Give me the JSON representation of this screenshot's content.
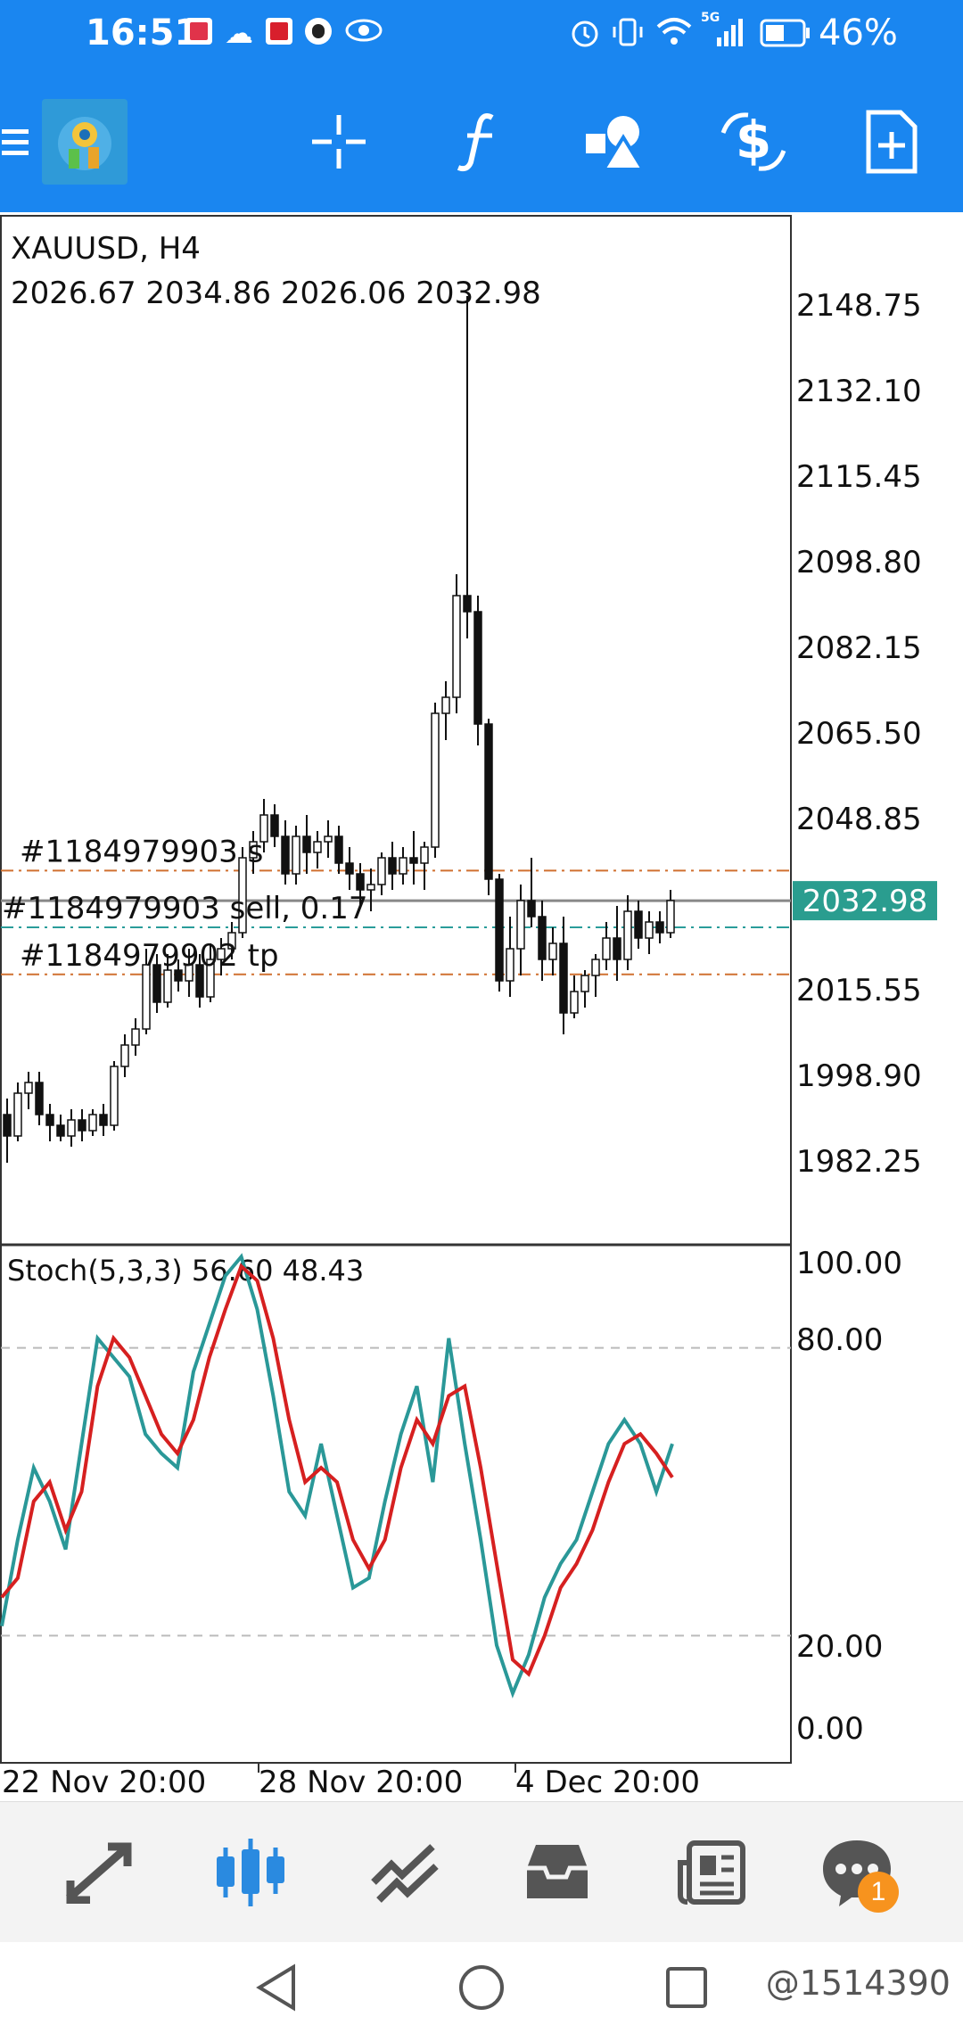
{
  "status_bar": {
    "time": "16:51",
    "battery_percent": "46%",
    "network_label": "5G"
  },
  "toolbar": {
    "icons": [
      "menu-icon",
      "app-logo",
      "crosshair-icon",
      "function-icon",
      "objects-icon",
      "trade-dollar-icon",
      "new-order-icon"
    ]
  },
  "chart": {
    "symbol_label": "XAUUSD, H4",
    "ohlc_label": "2026.67 2034.86 2026.06 2032.98",
    "current_price_label": "2032.98",
    "price_scale": [
      "2148.75",
      "2132.10",
      "2115.45",
      "2098.80",
      "2082.15",
      "2065.50",
      "2048.85",
      "2015.55",
      "1998.90",
      "1982.25"
    ],
    "order_lines": [
      {
        "label": "#1184979903 s",
        "color": "#d07030"
      },
      {
        "label": "#1184979903 sell, 0.17",
        "color": "#2a9d9a"
      },
      {
        "label": "#1184979902 tp",
        "color": "#d07030"
      }
    ],
    "indicator_label": "Stoch(5,3,3) 56.60 48.43",
    "indicator_scale": [
      "100.00",
      "80.00",
      "20.00",
      "0.00"
    ],
    "time_labels": [
      "22 Nov 20:00",
      "28 Nov 20:00",
      "4 Dec 20:00"
    ],
    "colors": {
      "price_badge_bg": "#2a9d8f",
      "stoch_main": "#2a9898",
      "stoch_signal": "#d62020",
      "bull_fill": "#ffffff",
      "bear_fill": "#111111"
    }
  },
  "chart_data": {
    "type": "candlestick",
    "symbol": "XAUUSD",
    "timeframe": "H4",
    "ylim": [
      1970,
      2160
    ],
    "order_levels": [
      2038.6,
      2028.0,
      2019.2
    ],
    "current_price": 2032.98,
    "candles": [
      [
        1993,
        1996,
        1984,
        1989
      ],
      [
        1989,
        1999,
        1988,
        1997
      ],
      [
        1997,
        2001,
        1994,
        1999
      ],
      [
        1999,
        2001,
        1991,
        1993
      ],
      [
        1993,
        1995,
        1988,
        1991
      ],
      [
        1991,
        1993,
        1988,
        1989
      ],
      [
        1989,
        1994,
        1987,
        1992
      ],
      [
        1992,
        1994,
        1988,
        1990
      ],
      [
        1990,
        1994,
        1989,
        1993
      ],
      [
        1993,
        1995,
        1989,
        1991
      ],
      [
        1991,
        2003,
        1990,
        2002
      ],
      [
        2002,
        2008,
        2000,
        2006
      ],
      [
        2006,
        2011,
        2004,
        2009
      ],
      [
        2009,
        2024,
        2008,
        2021
      ],
      [
        2021,
        2023,
        2012,
        2014
      ],
      [
        2014,
        2023,
        2013,
        2020
      ],
      [
        2020,
        2022,
        2016,
        2018
      ],
      [
        2018,
        2024,
        2015,
        2021
      ],
      [
        2021,
        2023,
        2013,
        2015
      ],
      [
        2015,
        2025,
        2014,
        2022
      ],
      [
        2022,
        2026,
        2019,
        2024
      ],
      [
        2024,
        2029,
        2022,
        2027
      ],
      [
        2027,
        2043,
        2026,
        2041
      ],
      [
        2041,
        2046,
        2038,
        2044
      ],
      [
        2044,
        2052,
        2042,
        2049
      ],
      [
        2049,
        2051,
        2043,
        2045
      ],
      [
        2045,
        2048,
        2036,
        2038
      ],
      [
        2038,
        2047,
        2036,
        2045
      ],
      [
        2045,
        2049,
        2038,
        2042
      ],
      [
        2042,
        2046,
        2039,
        2044
      ],
      [
        2044,
        2048,
        2041,
        2045
      ],
      [
        2045,
        2047,
        2038,
        2040
      ],
      [
        2040,
        2043,
        2035,
        2038
      ],
      [
        2038,
        2040,
        2032,
        2035
      ],
      [
        2035,
        2039,
        2031,
        2036
      ],
      [
        2036,
        2042,
        2034,
        2041
      ],
      [
        2041,
        2044,
        2035,
        2038
      ],
      [
        2038,
        2043,
        2036,
        2041
      ],
      [
        2041,
        2046,
        2036,
        2040
      ],
      [
        2040,
        2044,
        2035,
        2043
      ],
      [
        2043,
        2070,
        2041,
        2068
      ],
      [
        2068,
        2074,
        2063,
        2071
      ],
      [
        2071,
        2094,
        2068,
        2090
      ],
      [
        2090,
        2146,
        2082,
        2087
      ],
      [
        2087,
        2090,
        2062,
        2066
      ],
      [
        2066,
        2067,
        2034,
        2037
      ],
      [
        2037,
        2038,
        2016,
        2018
      ],
      [
        2018,
        2030,
        2015,
        2024
      ],
      [
        2024,
        2036,
        2019,
        2033
      ],
      [
        2033,
        2041,
        2028,
        2030
      ],
      [
        2030,
        2033,
        2018,
        2022
      ],
      [
        2022,
        2028,
        2019,
        2025
      ],
      [
        2025,
        2030,
        2008,
        2012
      ],
      [
        2012,
        2019,
        2011,
        2016
      ],
      [
        2016,
        2020,
        2013,
        2019
      ],
      [
        2019,
        2023,
        2015,
        2022
      ],
      [
        2022,
        2029,
        2020,
        2026
      ],
      [
        2026,
        2032,
        2018,
        2022
      ],
      [
        2022,
        2034,
        2020,
        2031
      ],
      [
        2031,
        2033,
        2024,
        2026
      ],
      [
        2026,
        2031,
        2023,
        2029
      ],
      [
        2029,
        2031,
        2025,
        2027
      ],
      [
        2027,
        2035,
        2026,
        2033
      ]
    ],
    "stoch": {
      "ylim": [
        0,
        100
      ],
      "levels": [
        20,
        80
      ],
      "main": [
        22,
        40,
        55,
        48,
        38,
        60,
        82,
        78,
        74,
        62,
        58,
        55,
        75,
        85,
        95,
        99,
        88,
        70,
        50,
        45,
        60,
        45,
        30,
        32,
        48,
        62,
        72,
        52,
        82,
        60,
        40,
        18,
        8,
        16,
        28,
        35,
        40,
        50,
        60,
        65,
        60,
        50,
        60
      ],
      "signal": [
        28,
        32,
        48,
        52,
        42,
        50,
        72,
        82,
        78,
        70,
        62,
        58,
        65,
        78,
        88,
        97,
        94,
        82,
        65,
        52,
        55,
        52,
        40,
        34,
        40,
        55,
        65,
        60,
        70,
        72,
        55,
        35,
        15,
        12,
        20,
        30,
        35,
        42,
        52,
        60,
        62,
        58,
        53
      ]
    }
  },
  "bottom_nav": {
    "items": [
      "quotes-icon",
      "chart-icon",
      "trade-icon",
      "history-icon",
      "news-icon",
      "messages-icon"
    ],
    "active_index": 1,
    "messages_badge": "1"
  },
  "system_nav": {
    "watermark": "@1514390"
  }
}
